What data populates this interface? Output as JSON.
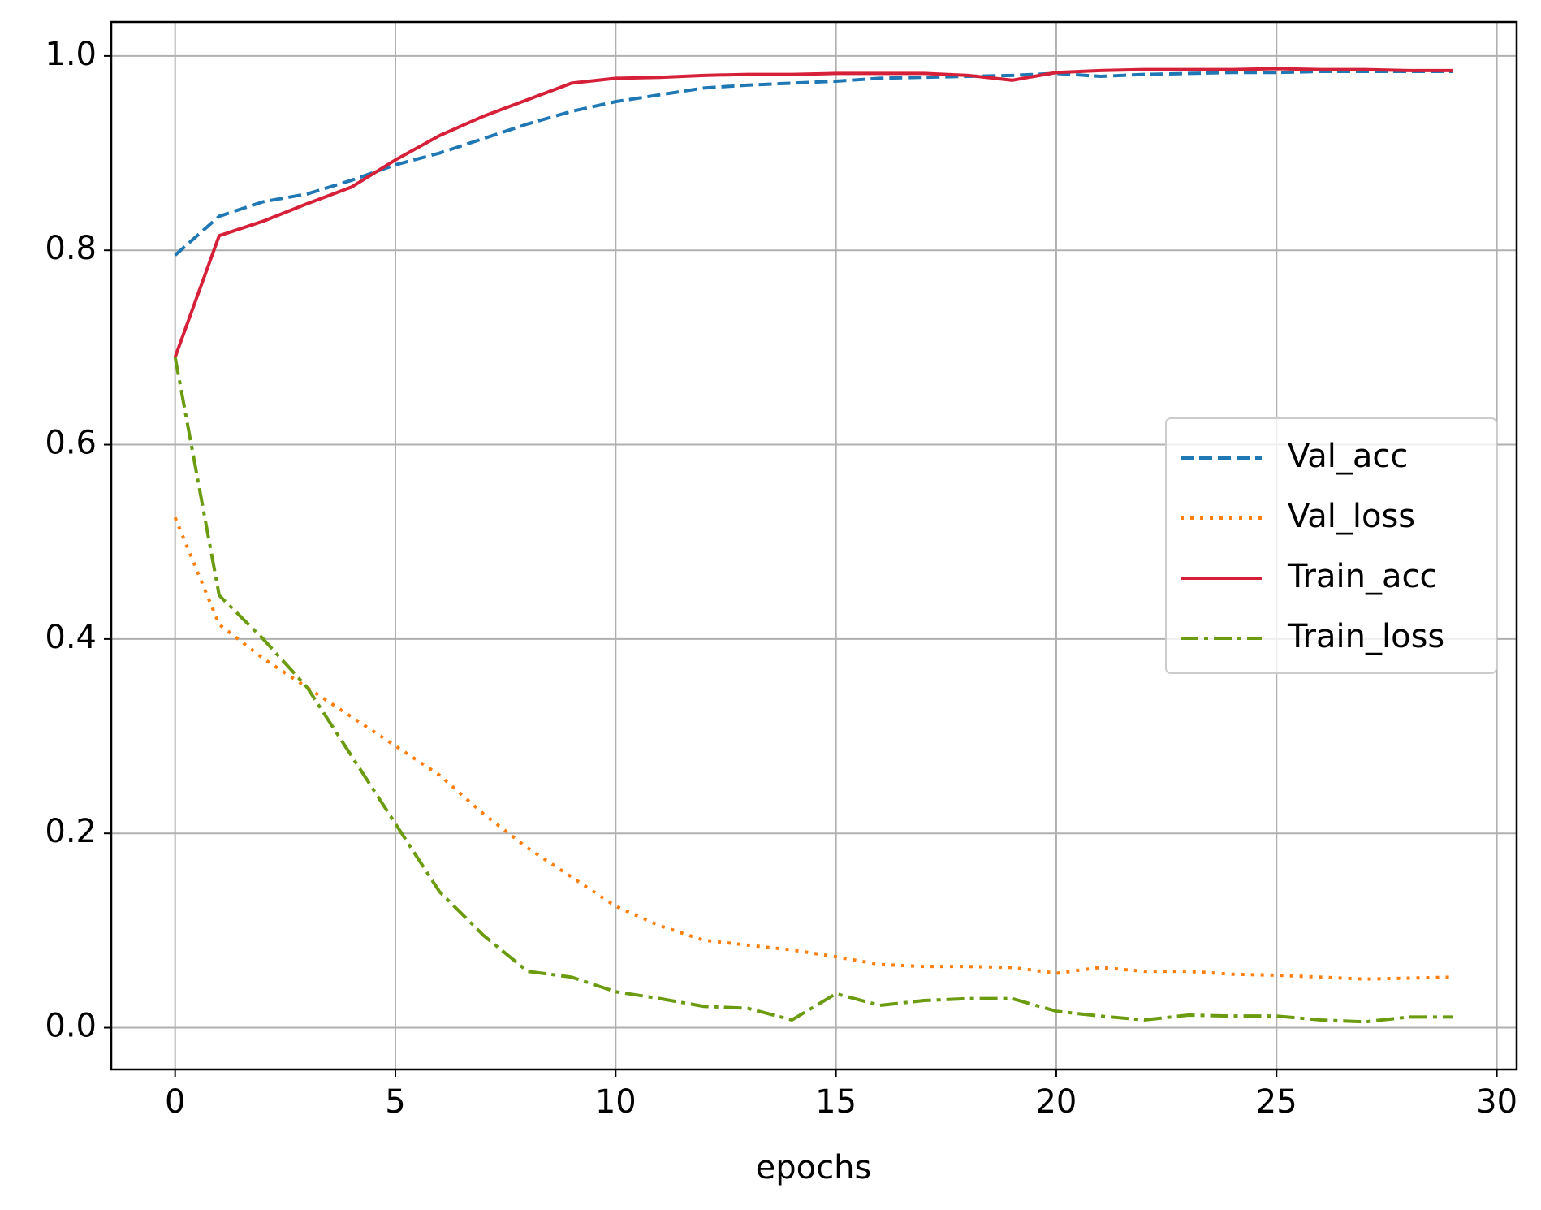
{
  "chart_data": {
    "type": "line",
    "x_label": "epochs",
    "x": [
      0,
      1,
      2,
      3,
      4,
      5,
      6,
      7,
      8,
      9,
      10,
      11,
      12,
      13,
      14,
      15,
      16,
      17,
      18,
      19,
      20,
      21,
      22,
      23,
      24,
      25,
      26,
      27,
      28,
      29
    ],
    "series": [
      {
        "name": "Val_acc",
        "color": "#1f77b4",
        "linestyle": "dashed",
        "values": [
          0.795,
          0.835,
          0.85,
          0.858,
          0.872,
          0.888,
          0.9,
          0.915,
          0.93,
          0.943,
          0.953,
          0.96,
          0.967,
          0.97,
          0.972,
          0.974,
          0.977,
          0.978,
          0.979,
          0.98,
          0.982,
          0.979,
          0.981,
          0.982,
          0.983,
          0.983,
          0.984,
          0.984,
          0.984,
          0.984
        ]
      },
      {
        "name": "Val_loss",
        "color": "#ff7f0e",
        "linestyle": "dotted",
        "values": [
          0.525,
          0.415,
          0.38,
          0.35,
          0.32,
          0.29,
          0.26,
          0.22,
          0.185,
          0.155,
          0.125,
          0.105,
          0.09,
          0.085,
          0.08,
          0.073,
          0.065,
          0.063,
          0.063,
          0.062,
          0.056,
          0.062,
          0.058,
          0.058,
          0.055,
          0.054,
          0.052,
          0.05,
          0.051,
          0.052
        ]
      },
      {
        "name": "Train_acc",
        "color": "#d62039",
        "linestyle": "solid",
        "values": [
          0.69,
          0.815,
          0.83,
          0.848,
          0.865,
          0.893,
          0.918,
          0.938,
          0.955,
          0.972,
          0.977,
          0.978,
          0.98,
          0.981,
          0.981,
          0.982,
          0.982,
          0.982,
          0.98,
          0.975,
          0.983,
          0.985,
          0.986,
          0.986,
          0.986,
          0.987,
          0.986,
          0.986,
          0.985,
          0.985
        ]
      },
      {
        "name": "Train_loss",
        "color": "#6b9b0f",
        "linestyle": "dashdot",
        "values": [
          0.69,
          0.445,
          0.4,
          0.35,
          0.28,
          0.21,
          0.14,
          0.095,
          0.058,
          0.052,
          0.037,
          0.03,
          0.022,
          0.02,
          0.008,
          0.035,
          0.023,
          0.028,
          0.03,
          0.03,
          0.017,
          0.012,
          0.008,
          0.013,
          0.012,
          0.012,
          0.008,
          0.006,
          0.011,
          0.011
        ]
      }
    ],
    "xlim": [
      -1.45,
      30.45
    ],
    "xticks": [
      0,
      5,
      10,
      15,
      20,
      25,
      30
    ],
    "ylim": [
      -0.043,
      1.035
    ],
    "yticks": [
      {
        "value": 0,
        "label": "0.0"
      },
      0.2,
      0.4,
      0.6,
      0.8,
      {
        "value": 1,
        "label": "1.0"
      }
    ],
    "grid": true,
    "legend": "center right"
  }
}
